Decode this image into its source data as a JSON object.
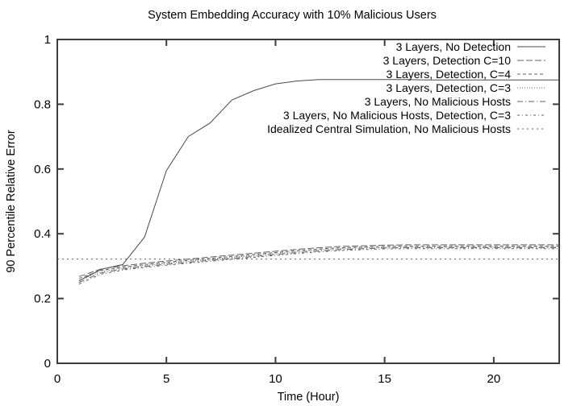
{
  "chart_data": {
    "type": "line",
    "title": "System Embedding Accuracy with 10% Malicious Users",
    "xlabel": "Time (Hour)",
    "ylabel": "90 Percentile Relative Error",
    "xlim": [
      0,
      23
    ],
    "ylim": [
      0,
      1
    ],
    "xticks": [
      0,
      5,
      10,
      15,
      20
    ],
    "xtick_labels": [
      "0",
      "5",
      "10",
      "15",
      "20"
    ],
    "yticks": [
      0,
      0.2,
      0.4,
      0.6,
      0.8,
      1
    ],
    "ytick_labels": [
      "0",
      "0.2",
      "0.4",
      "0.6",
      "0.8",
      "1"
    ],
    "grid": false,
    "legend_position": "top-right-inside",
    "series": [
      {
        "name": "3 Layers, No Detection",
        "line_style": "solid",
        "color": "#4a4a4a",
        "x": [
          1,
          2,
          3,
          4,
          5,
          6,
          7,
          8,
          9,
          10,
          11,
          12,
          13,
          14,
          15,
          16,
          17,
          18,
          19,
          20,
          21,
          22,
          23
        ],
        "y": [
          0.255,
          0.29,
          0.305,
          0.39,
          0.595,
          0.7,
          0.742,
          0.813,
          0.842,
          0.863,
          0.872,
          0.876,
          0.876,
          0.876,
          0.876,
          0.876,
          0.875,
          0.875,
          0.875,
          0.875,
          0.875,
          0.875,
          0.875
        ]
      },
      {
        "name": "3 Layers, Detection C=10",
        "line_style": "dashed",
        "color": "#5f5f5f",
        "x": [
          1,
          2,
          3,
          4,
          5,
          6,
          7,
          8,
          9,
          10,
          11,
          12,
          13,
          14,
          15,
          16,
          17,
          18,
          19,
          20,
          21,
          22,
          23
        ],
        "y": [
          0.268,
          0.291,
          0.301,
          0.309,
          0.316,
          0.322,
          0.328,
          0.334,
          0.34,
          0.346,
          0.352,
          0.357,
          0.361,
          0.363,
          0.365,
          0.366,
          0.366,
          0.366,
          0.366,
          0.366,
          0.366,
          0.366,
          0.366
        ]
      },
      {
        "name": "3 Layers, Detection, C=4",
        "line_style": "short-dash",
        "color": "#5f5f5f",
        "x": [
          1,
          2,
          3,
          4,
          5,
          6,
          7,
          8,
          9,
          10,
          11,
          12,
          13,
          14,
          15,
          16,
          17,
          18,
          19,
          20,
          21,
          22,
          23
        ],
        "y": [
          0.262,
          0.287,
          0.297,
          0.305,
          0.312,
          0.318,
          0.324,
          0.33,
          0.336,
          0.342,
          0.348,
          0.353,
          0.357,
          0.359,
          0.361,
          0.362,
          0.362,
          0.362,
          0.362,
          0.362,
          0.362,
          0.362,
          0.362
        ]
      },
      {
        "name": "3 Layers, Detection, C=3",
        "line_style": "dotted",
        "color": "#5f5f5f",
        "x": [
          1,
          2,
          3,
          4,
          5,
          6,
          7,
          8,
          9,
          10,
          11,
          12,
          13,
          14,
          15,
          16,
          17,
          18,
          19,
          20,
          21,
          22,
          23
        ],
        "y": [
          0.256,
          0.283,
          0.294,
          0.302,
          0.309,
          0.315,
          0.321,
          0.327,
          0.333,
          0.339,
          0.345,
          0.35,
          0.354,
          0.357,
          0.358,
          0.359,
          0.359,
          0.359,
          0.359,
          0.359,
          0.359,
          0.359,
          0.359
        ]
      },
      {
        "name": "3 Layers, No Malicious Hosts",
        "line_style": "dash-dot",
        "color": "#5f5f5f",
        "x": [
          1,
          2,
          3,
          4,
          5,
          6,
          7,
          8,
          9,
          10,
          11,
          12,
          13,
          14,
          15,
          16,
          17,
          18,
          19,
          20,
          21,
          22,
          23
        ],
        "y": [
          0.25,
          0.279,
          0.291,
          0.299,
          0.306,
          0.312,
          0.318,
          0.324,
          0.33,
          0.336,
          0.342,
          0.347,
          0.351,
          0.354,
          0.356,
          0.357,
          0.357,
          0.357,
          0.357,
          0.357,
          0.357,
          0.357,
          0.357
        ]
      },
      {
        "name": "3 Layers, No Malicious Hosts, Detection, C=3",
        "line_style": "dash-dot-short",
        "color": "#5f5f5f",
        "x": [
          1,
          2,
          3,
          4,
          5,
          6,
          7,
          8,
          9,
          10,
          11,
          12,
          13,
          14,
          15,
          16,
          17,
          18,
          19,
          20,
          21,
          22,
          23
        ],
        "y": [
          0.245,
          0.275,
          0.288,
          0.296,
          0.303,
          0.309,
          0.315,
          0.321,
          0.327,
          0.333,
          0.339,
          0.344,
          0.348,
          0.351,
          0.353,
          0.354,
          0.354,
          0.354,
          0.354,
          0.354,
          0.354,
          0.354,
          0.354
        ]
      },
      {
        "name": "Idealized Central Simulation, No Malicious Hosts",
        "line_style": "fine-dot",
        "color": "#5f5f5f",
        "x": [
          0,
          23
        ],
        "y": [
          0.322,
          0.322
        ]
      }
    ]
  }
}
